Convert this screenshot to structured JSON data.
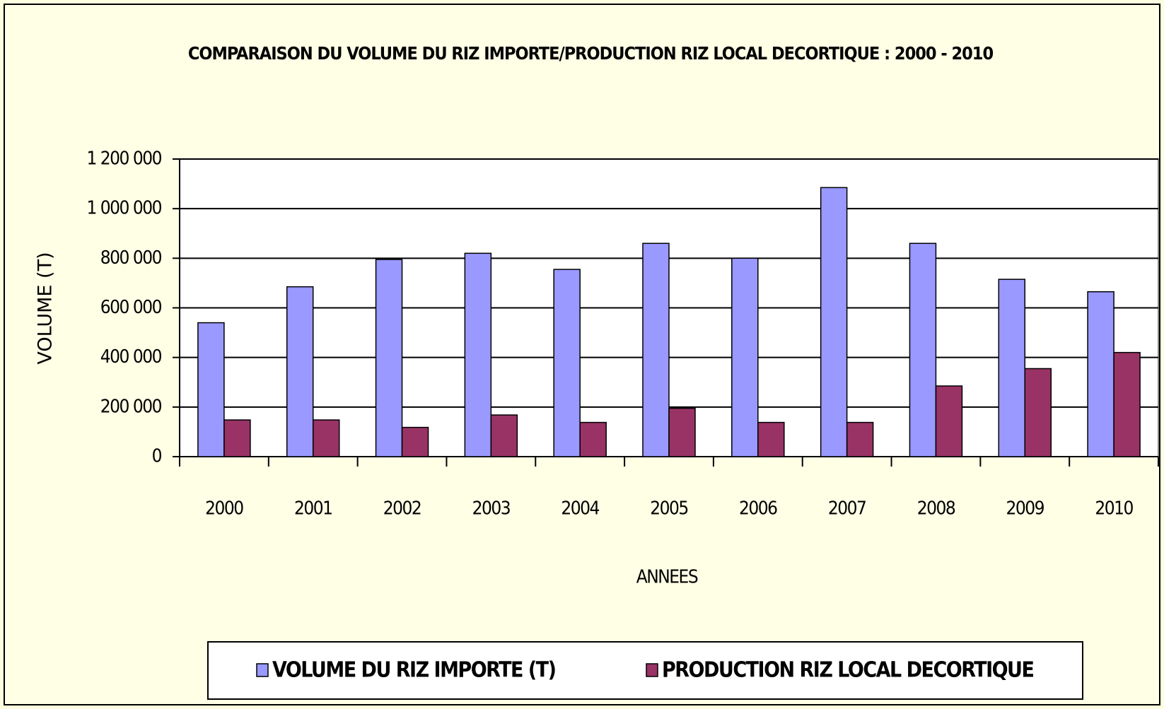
{
  "chart_data": {
    "type": "bar",
    "title": "COMPARAISON DU VOLUME DU RIZ IMPORTE/PRODUCTION RIZ LOCAL DECORTIQUE : 2000 - 2010",
    "x_label": "ANNEES",
    "y_label": "VOLUME (T)",
    "categories": [
      "2000",
      "2001",
      "2002",
      "2003",
      "2004",
      "2005",
      "2006",
      "2007",
      "2008",
      "2009",
      "2010"
    ],
    "series": [
      {
        "name": "VOLUME DU RIZ IMPORTE (T)",
        "color": "#9999ff",
        "values": [
          540000,
          685000,
          795000,
          820000,
          755000,
          860000,
          800000,
          1085000,
          860000,
          715000,
          665000
        ]
      },
      {
        "name": "PRODUCTION RIZ LOCAL DECORTIQUE",
        "color": "#993366",
        "values": [
          148000,
          148000,
          118000,
          168000,
          138000,
          195000,
          138000,
          138000,
          285000,
          355000,
          420000
        ]
      }
    ],
    "ylim": [
      0,
      1200000
    ],
    "yticks": [
      0,
      {
        "value": 200000,
        "label": "200 000"
      },
      {
        "value": 400000,
        "label": "400 000"
      },
      {
        "value": 600000,
        "label": "600 000"
      },
      {
        "value": 800000,
        "label": "800 000"
      },
      {
        "value": 1000000,
        "label": "1 000 000"
      },
      {
        "value": 1200000,
        "label": "1 200 000"
      }
    ],
    "grid": true,
    "legend": "bottom"
  }
}
